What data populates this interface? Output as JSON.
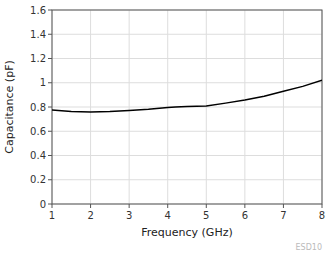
{
  "chart_data": {
    "type": "line",
    "xlabel": "Frequency (GHz)",
    "ylabel": "Capacitance (pF)",
    "x": [
      1.0,
      1.5,
      2.0,
      2.5,
      3.0,
      3.5,
      4.0,
      4.2,
      4.5,
      5.0,
      5.5,
      6.0,
      6.5,
      7.0,
      7.5,
      8.0
    ],
    "values": [
      0.775,
      0.762,
      0.758,
      0.762,
      0.772,
      0.782,
      0.796,
      0.8,
      0.804,
      0.808,
      0.832,
      0.858,
      0.888,
      0.93,
      0.97,
      1.02
    ],
    "color": "#000000",
    "xlim": [
      1,
      8
    ],
    "ylim": [
      0,
      1.6
    ],
    "xticks": [
      1,
      2,
      3,
      4,
      5,
      6,
      7,
      8
    ],
    "yticks": [
      0,
      0.2,
      0.4,
      0.6,
      0.8,
      1,
      1.2,
      1.4,
      1.6
    ],
    "grid": true,
    "annotations": [
      "ESD10"
    ]
  }
}
